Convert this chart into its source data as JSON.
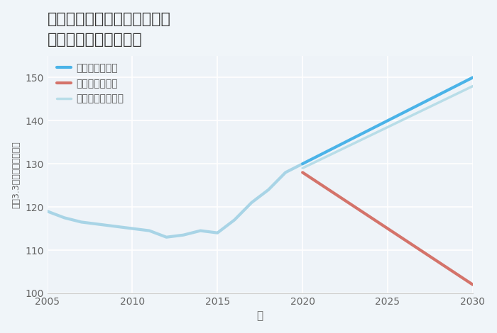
{
  "title_line1": "兵庫県西宮市上ヶ原四番町の",
  "title_line2": "中古戸建ての価格推移",
  "xlabel": "年",
  "ylabel": "坪（3.3㎡）単価（万円）",
  "background_color": "#f0f5f9",
  "plot_bg_color": "#eef3f8",
  "ylim": [
    100,
    155
  ],
  "xlim": [
    2005,
    2030
  ],
  "yticks": [
    100,
    110,
    120,
    130,
    140,
    150
  ],
  "xticks": [
    2005,
    2010,
    2015,
    2020,
    2025,
    2030
  ],
  "history_x": [
    2005,
    2006,
    2007,
    2008,
    2009,
    2010,
    2011,
    2012,
    2013,
    2014,
    2015,
    2016,
    2017,
    2018,
    2019,
    2020
  ],
  "history_y": [
    119,
    117.5,
    116.5,
    116,
    115.5,
    115,
    114.5,
    113,
    113.5,
    114.5,
    114,
    117,
    121,
    124,
    128,
    130
  ],
  "good_x": [
    2020,
    2021,
    2022,
    2023,
    2024,
    2025,
    2026,
    2027,
    2028,
    2029,
    2030
  ],
  "good_y": [
    130,
    132,
    134,
    136,
    138,
    140,
    142,
    144,
    146,
    148,
    150
  ],
  "bad_x": [
    2020,
    2021,
    2022,
    2023,
    2024,
    2025,
    2026,
    2027,
    2028,
    2029,
    2030
  ],
  "bad_y": [
    128,
    125.4,
    122.8,
    120.2,
    117.6,
    115,
    112.4,
    109.8,
    107.2,
    104.6,
    102
  ],
  "normal_x": [
    2020,
    2021,
    2022,
    2023,
    2024,
    2025,
    2026,
    2027,
    2028,
    2029,
    2030
  ],
  "normal_y": [
    129,
    130.9,
    132.8,
    134.7,
    136.6,
    138.5,
    140.4,
    142.3,
    144.2,
    146.1,
    148
  ],
  "color_history": "#a8d4e6",
  "color_good": "#4ab3e8",
  "color_bad": "#d4736a",
  "color_normal": "#b8dde8",
  "legend_good": "グッドシナリオ",
  "legend_bad": "バッドシナリオ",
  "legend_normal": "ノーマルシナリオ",
  "line_width": 2.5
}
